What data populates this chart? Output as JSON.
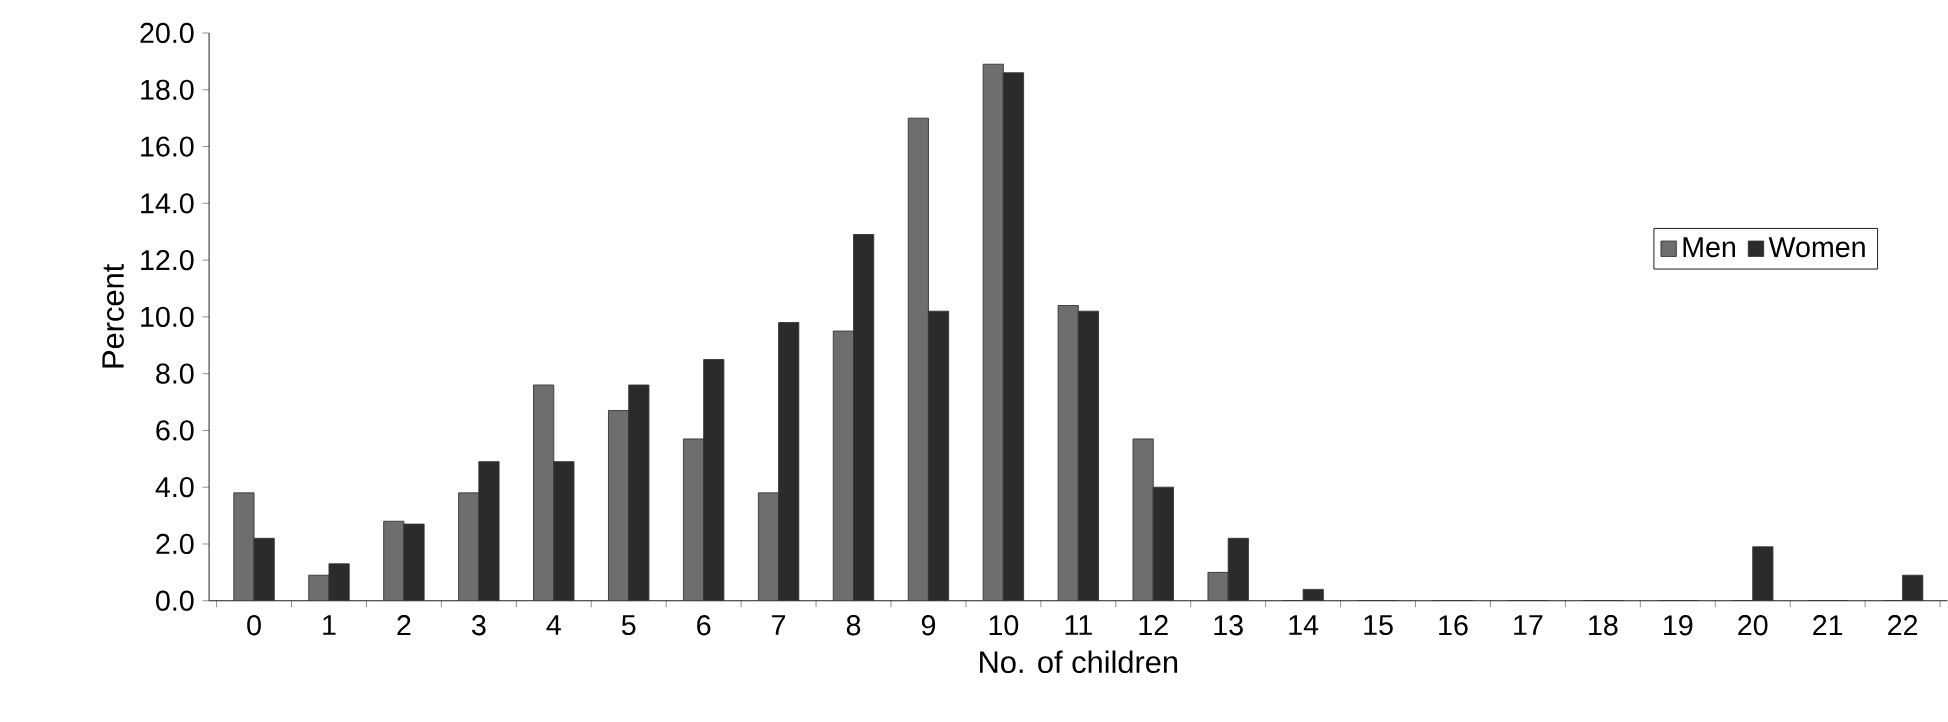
{
  "chart_data": {
    "type": "bar",
    "xlabel": "No. of children",
    "ylabel": "Percent",
    "categories": [
      "0",
      "1",
      "2",
      "3",
      "4",
      "5",
      "6",
      "7",
      "8",
      "9",
      "10",
      "11",
      "12",
      "13",
      "14",
      "15",
      "16",
      "17",
      "18",
      "19",
      "20",
      "21",
      "22"
    ],
    "series": [
      {
        "name": "Men",
        "color": "#6e6e6e",
        "values": [
          3.8,
          0.9,
          2.8,
          3.8,
          7.6,
          6.7,
          5.7,
          3.8,
          9.5,
          17.0,
          18.9,
          10.4,
          5.7,
          1.0,
          0,
          0,
          0,
          0,
          0,
          0,
          0,
          0,
          0
        ]
      },
      {
        "name": "Women",
        "color": "#2b2b2b",
        "values": [
          2.2,
          1.3,
          2.7,
          4.9,
          4.9,
          7.6,
          8.5,
          9.8,
          12.9,
          10.2,
          18.6,
          10.2,
          4.0,
          2.2,
          0.4,
          0,
          0,
          0,
          0,
          0,
          1.9,
          0,
          0.9
        ]
      }
    ],
    "ylim": [
      0,
      20
    ],
    "yticks": [
      {
        "value": 0,
        "label": "0.0"
      },
      {
        "value": 2,
        "label": "2.0"
      },
      {
        "value": 4,
        "label": "4.0"
      },
      {
        "value": 6,
        "label": "6.0"
      },
      {
        "value": 8,
        "label": "8.0"
      },
      {
        "value": 10,
        "label": "10.0"
      },
      {
        "value": 12,
        "label": "12.0"
      },
      {
        "value": 14,
        "label": "14.0"
      },
      {
        "value": 16,
        "label": "16.0"
      },
      {
        "value": 18,
        "label": "18.0"
      },
      {
        "value": 20,
        "label": "20.0"
      }
    ],
    "grid": false,
    "legend": "right"
  }
}
